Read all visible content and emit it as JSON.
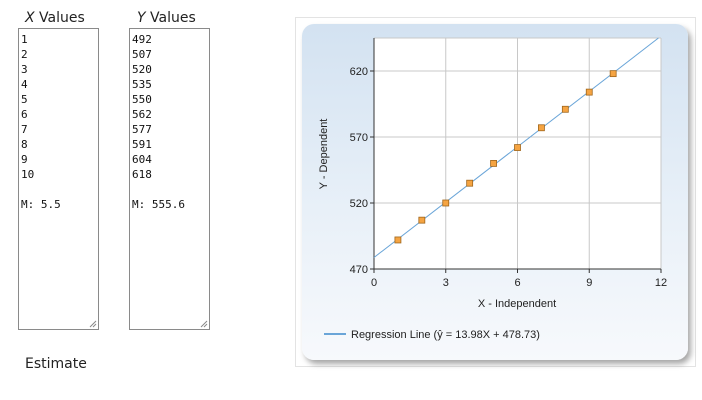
{
  "x_column": {
    "label_var": "X",
    "label_rest": " Values",
    "values": [
      "1",
      "2",
      "3",
      "4",
      "5",
      "6",
      "7",
      "8",
      "9",
      "10"
    ],
    "mean": "M: 5.5"
  },
  "y_column": {
    "label_var": "Y",
    "label_rest": " Values",
    "values": [
      "492",
      "507",
      "520",
      "535",
      "550",
      "562",
      "577",
      "591",
      "604",
      "618"
    ],
    "mean": "M: 555.6"
  },
  "estimate_label": "Estimate",
  "chart_data": {
    "type": "scatter",
    "x": [
      1,
      2,
      3,
      4,
      5,
      6,
      7,
      8,
      9,
      10
    ],
    "y": [
      492,
      507,
      520,
      535,
      550,
      562,
      577,
      591,
      604,
      618
    ],
    "xlabel": "X - Independent",
    "ylabel": "Y - Dependent",
    "xlim": [
      0,
      12
    ],
    "ylim": [
      470,
      645
    ],
    "xticks": [
      "0",
      "3",
      "6",
      "9",
      "12"
    ],
    "yticks": [
      "470",
      "520",
      "570",
      "620"
    ],
    "grid": true,
    "regression": {
      "slope": 13.98,
      "intercept": 478.73
    },
    "legend_label": "Regression Line (ŷ = 13.98X + 478.73)",
    "legend_position": "bottom-left",
    "colors": {
      "line": "#6aa5d8",
      "marker_fill": "#f5a442",
      "marker_stroke": "#a0661c",
      "grid": "#c8c8c8"
    }
  }
}
